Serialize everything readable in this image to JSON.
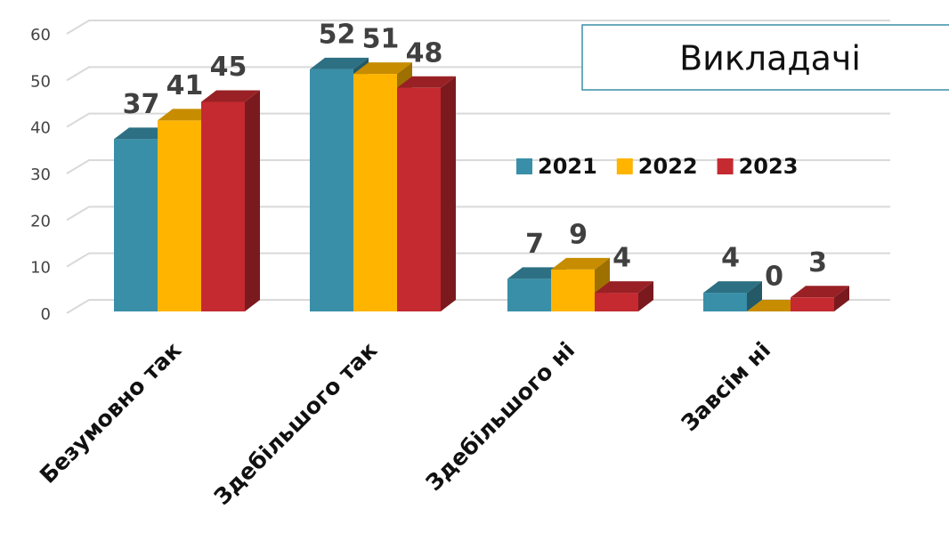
{
  "chart_data": {
    "type": "bar3d",
    "title": "Викладачі",
    "categories": [
      "Безумовно так",
      "Здебільшого так",
      "Здебільшого ні",
      "Завсім ні"
    ],
    "series": [
      {
        "name": "2021",
        "color": "#3a8fa8",
        "values": [
          37,
          52,
          7,
          4
        ]
      },
      {
        "name": "2022",
        "color": "#ffb400",
        "values": [
          41,
          51,
          9,
          0
        ]
      },
      {
        "name": "2023",
        "color": "#c42a30",
        "values": [
          45,
          48,
          4,
          3
        ]
      }
    ],
    "ylim": [
      0,
      60
    ],
    "yticks": [
      0,
      10,
      20,
      30,
      40,
      50,
      60
    ],
    "grid": true,
    "legend": "right"
  }
}
